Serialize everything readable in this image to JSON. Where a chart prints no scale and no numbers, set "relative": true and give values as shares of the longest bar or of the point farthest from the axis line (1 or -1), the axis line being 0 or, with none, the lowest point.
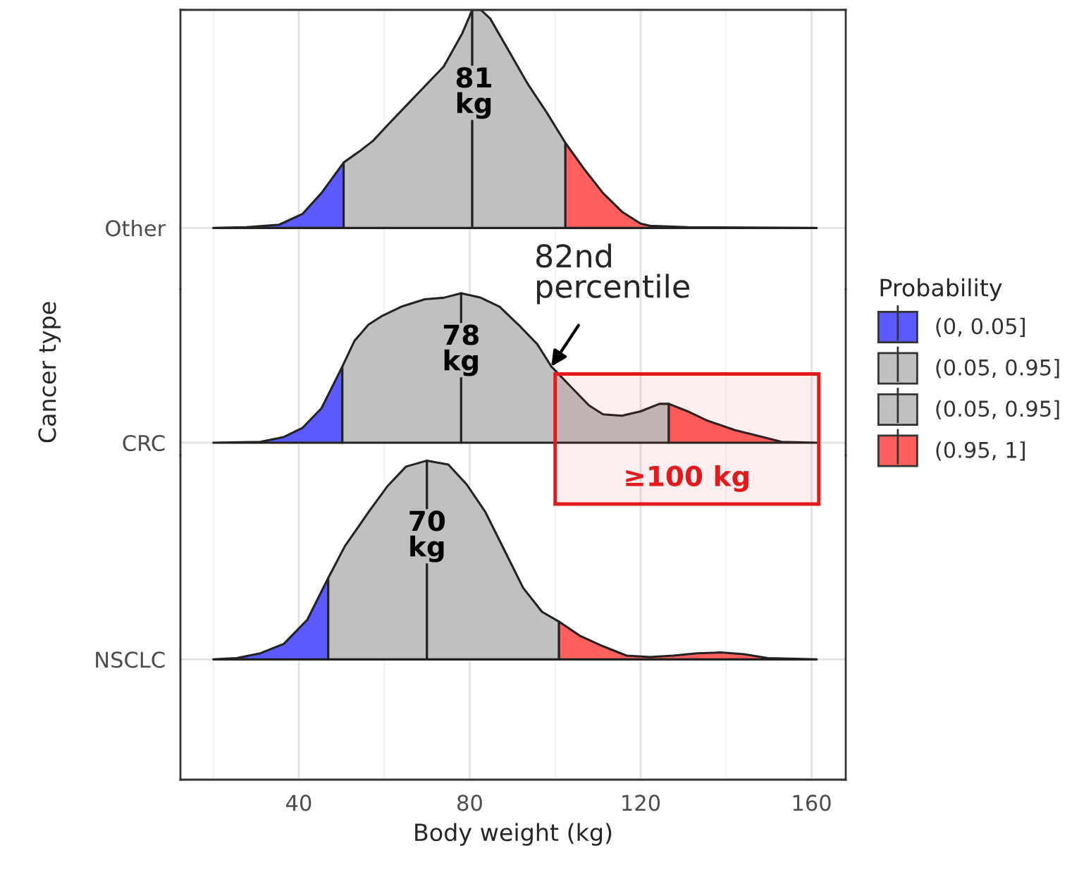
{
  "chart_data": [
    {
      "type": "area",
      "relative": true,
      "xlim": [
        12.3,
        168.0
      ],
      "xticks": [
        40,
        80,
        120,
        160
      ],
      "grid": true,
      "tick_labels": "y",
      "series": [
        {
          "color": "#5a5aff",
          "x": [
            20.0,
            27.7,
            35.4,
            40.9,
            45.3,
            50.5
          ],
          "values": [
            0,
            0.004,
            0.015,
            0.065,
            0.16,
            0.3
          ]
        },
        {
          "color": "#c0c0c0",
          "x": [
            50.5,
            54.1,
            57.4,
            60.7,
            65.1,
            69.5,
            73.9,
            78.2,
            80.6
          ],
          "values": [
            0.3,
            0.35,
            0.4,
            0.47,
            0.56,
            0.65,
            0.74,
            0.89,
            1
          ]
        },
        {
          "color": "#c0c0c0",
          "x": [
            80.6,
            82.6,
            84.8,
            89.2,
            93.6,
            98.0,
            102.4
          ],
          "values": [
            1,
            1,
            0.96,
            0.81,
            0.66,
            0.53,
            0.39
          ]
        },
        {
          "color": "#ff5f5f",
          "x": [
            102.4,
            106.8,
            111.2,
            115.6,
            120.0,
            122.2,
            131.0,
            161.2
          ],
          "values": [
            0.39,
            0.27,
            0.16,
            0.075,
            0.02,
            0.01,
            0.004,
            0
          ]
        }
      ],
      "annotations": [
        "Other",
        {
          "text": "81\nkg",
          "x": 81
        }
      ]
    },
    {
      "type": "area",
      "relative": true,
      "xlim": [
        12.3,
        168.0
      ],
      "xticks": [
        40,
        80,
        120,
        160
      ],
      "grid": true,
      "tick_labels": "y",
      "ylabel": "Cancer type",
      "legend_title": "Probability",
      "legend": "right",
      "series": [
        {
          "name": "(0, 0.05]",
          "color": "#5a5aff",
          "x": [
            20.0,
            31.0,
            36.5,
            40.9,
            45.3,
            50.2
          ],
          "values": [
            0,
            0.006,
            0.038,
            0.1,
            0.23,
            0.51
          ]
        },
        {
          "name": "(0.05, 0.95]",
          "color": "#c0c0c0",
          "x": [
            50.2,
            53.0,
            56.3,
            59.6,
            64.0,
            69.5,
            73.9,
            78.0
          ],
          "values": [
            0.51,
            0.68,
            0.79,
            0.85,
            0.91,
            0.96,
            0.97,
            1
          ]
        },
        {
          "name": "(0.05, 0.95]",
          "color": "#c0c0c0",
          "x": [
            78.0,
            82.6,
            87.0,
            91.4,
            95.8,
            99.1,
            103.5,
            107.9,
            111.2,
            115.6,
            120.0,
            124.4,
            126.6
          ],
          "values": [
            1,
            0.97,
            0.91,
            0.79,
            0.66,
            0.51,
            0.38,
            0.25,
            0.19,
            0.18,
            0.21,
            0.26,
            0.26
          ]
        },
        {
          "name": "(0.95, 1]",
          "color": "#ff5f5f",
          "x": [
            126.6,
            131.0,
            135.4,
            142.0,
            148.6,
            153.0,
            161.2
          ],
          "values": [
            0.26,
            0.21,
            0.15,
            0.085,
            0.038,
            0.006,
            0
          ]
        }
      ],
      "annotations": [
        "CRC",
        {
          "text": "78\nkg",
          "x": 78
        },
        {
          "text": "82nd\npercentile",
          "x": 99.1,
          "y": 0.51
        }
      ],
      "bands": [
        {
          "axis": "x",
          "from": 100,
          "to": 161.7,
          "label": "≥100 kg",
          "color": "#e31a1c"
        }
      ]
    },
    {
      "type": "area",
      "relative": true,
      "xlim": [
        12.3,
        168.0
      ],
      "xticks": [
        40,
        80,
        120,
        160
      ],
      "grid": true,
      "xlabel": "Body weight (kg)",
      "series": [
        {
          "color": "#5a5aff",
          "x": [
            20.0,
            25.5,
            31.0,
            36.5,
            42.0,
            46.9
          ],
          "values": [
            0,
            0.007,
            0.031,
            0.078,
            0.2,
            0.41
          ]
        },
        {
          "color": "#c0c0c0",
          "x": [
            46.9,
            50.8,
            56.3,
            60.7,
            65.1,
            70.0
          ],
          "values": [
            0.41,
            0.57,
            0.74,
            0.87,
            0.97,
            1
          ]
        },
        {
          "color": "#c0c0c0",
          "x": [
            70.0,
            75.0,
            79.3,
            83.7,
            88.1,
            92.5,
            96.9,
            100.9
          ],
          "values": [
            1,
            0.98,
            0.88,
            0.74,
            0.55,
            0.36,
            0.24,
            0.19
          ]
        },
        {
          "color": "#ff5f5f",
          "x": [
            100.9,
            105.7,
            111.2,
            116.7,
            122.2,
            127.7,
            133.2,
            138.7,
            144.2,
            149.7,
            161.2
          ],
          "values": [
            0.19,
            0.12,
            0.066,
            0.019,
            0.012,
            0.019,
            0.031,
            0.035,
            0.026,
            0.007,
            0
          ]
        }
      ],
      "annotations": [
        "NSCLC",
        {
          "text": "70\nkg",
          "x": 70
        }
      ]
    }
  ]
}
